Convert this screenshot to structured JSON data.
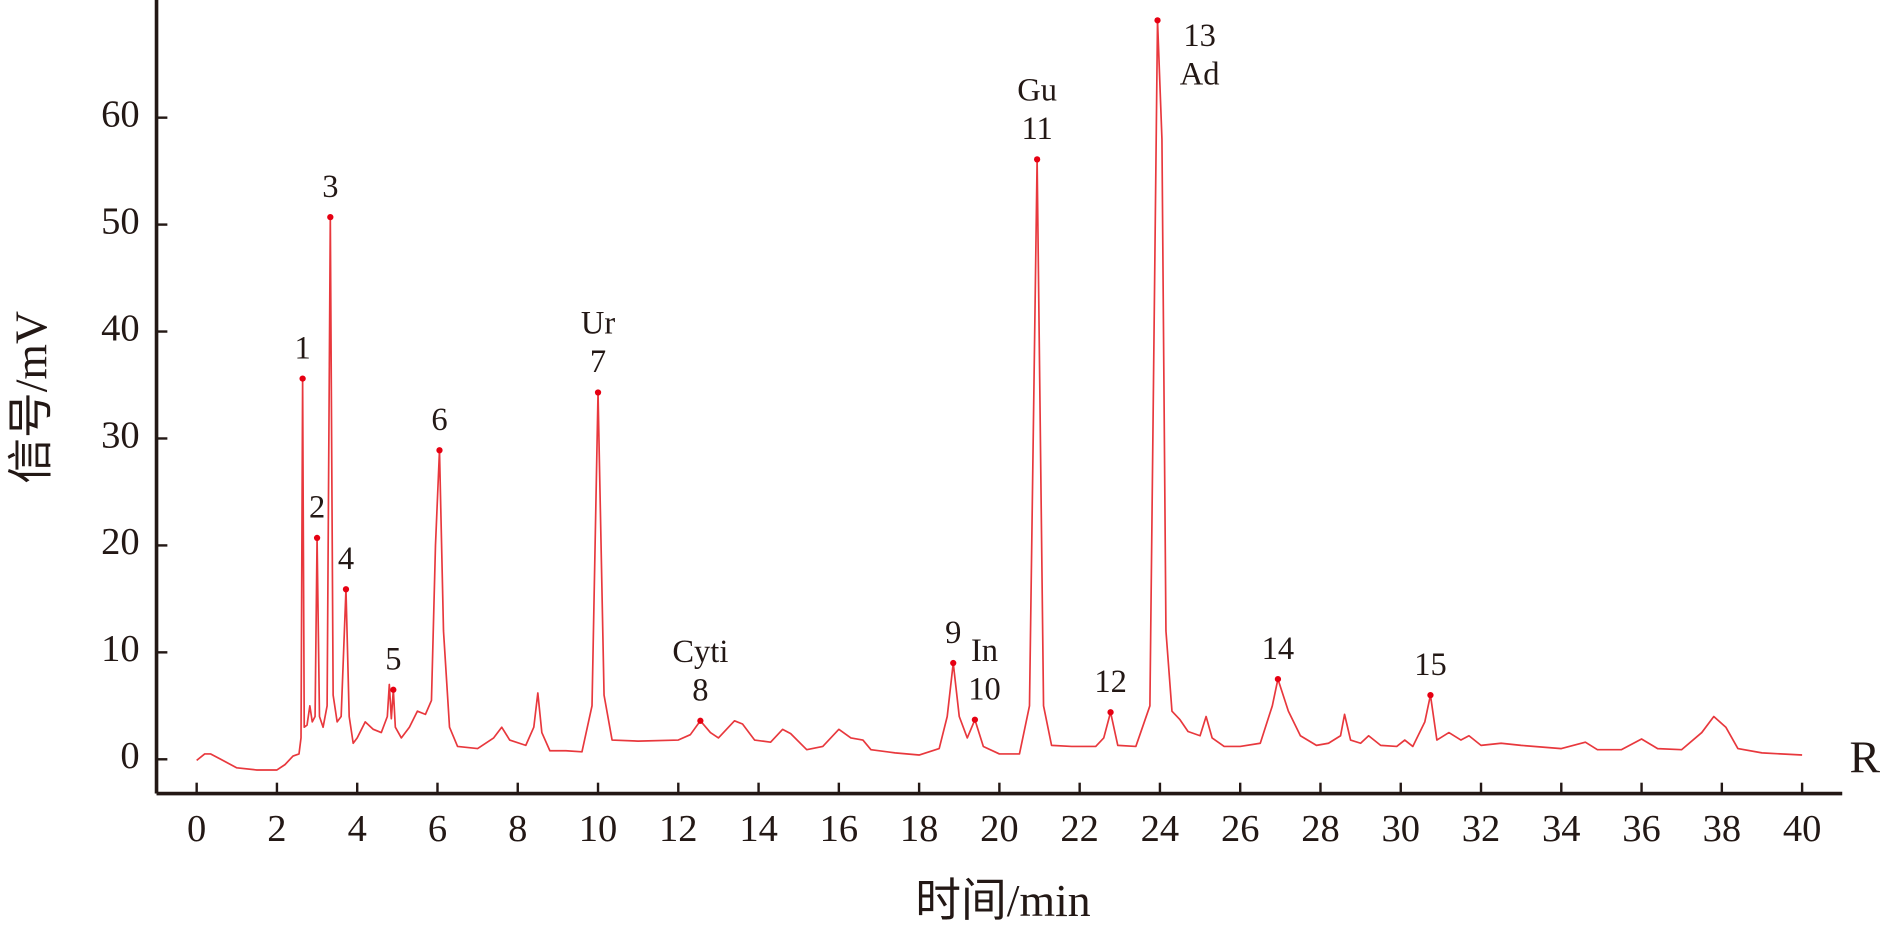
{
  "chart_data": {
    "type": "line",
    "y_label": "信号/mV",
    "x_label": "时间/min",
    "edge_label": "R",
    "color": "#e8383d",
    "marker_color": "#e60012",
    "xlim": [
      -1,
      41
    ],
    "ylim": [
      -3.2,
      71
    ],
    "xticks": [
      0,
      2,
      4,
      6,
      8,
      10,
      12,
      14,
      16,
      18,
      20,
      22,
      24,
      26,
      28,
      30,
      32,
      34,
      36,
      38,
      40
    ],
    "yticks": [
      0,
      10,
      20,
      30,
      40,
      50,
      60
    ],
    "x": [
      0.0,
      0.2,
      0.35,
      0.6,
      1.0,
      1.5,
      2.0,
      2.2,
      2.4,
      2.55,
      2.6,
      2.64,
      2.68,
      2.75,
      2.82,
      2.88,
      2.95,
      3.0,
      3.06,
      3.15,
      3.25,
      3.33,
      3.4,
      3.5,
      3.6,
      3.72,
      3.8,
      3.9,
      4.0,
      4.2,
      4.4,
      4.6,
      4.75,
      4.8,
      4.85,
      4.9,
      4.95,
      5.1,
      5.3,
      5.5,
      5.7,
      5.85,
      5.95,
      6.05,
      6.15,
      6.3,
      6.5,
      7.0,
      7.4,
      7.6,
      7.8,
      8.2,
      8.4,
      8.5,
      8.6,
      8.8,
      9.2,
      9.6,
      9.85,
      10.0,
      10.15,
      10.35,
      11.0,
      12.0,
      12.3,
      12.55,
      12.8,
      13.0,
      13.4,
      13.6,
      13.9,
      14.3,
      14.6,
      14.8,
      15.2,
      15.6,
      16.0,
      16.3,
      16.6,
      16.8,
      17.4,
      18.0,
      18.5,
      18.7,
      18.85,
      19.0,
      19.2,
      19.39,
      19.6,
      20.0,
      20.5,
      20.75,
      20.94,
      21.1,
      21.3,
      21.8,
      22.4,
      22.6,
      22.77,
      22.95,
      23.4,
      23.75,
      23.94,
      24.05,
      24.15,
      24.3,
      24.5,
      24.7,
      25.0,
      25.15,
      25.3,
      25.6,
      26.0,
      26.5,
      26.8,
      26.94,
      27.2,
      27.5,
      27.9,
      28.2,
      28.5,
      28.6,
      28.75,
      29.0,
      29.2,
      29.5,
      29.9,
      30.1,
      30.3,
      30.6,
      30.74,
      30.9,
      31.2,
      31.5,
      31.7,
      32.0,
      32.5,
      33.0,
      34.0,
      34.6,
      34.9,
      35.5,
      36.0,
      36.4,
      37.0,
      37.5,
      37.8,
      38.1,
      38.4,
      39.0,
      40.0
    ],
    "values": [
      -0.1,
      0.5,
      0.5,
      0,
      -0.8,
      -1.0,
      -1.0,
      -0.5,
      0.3,
      0.5,
      2,
      35.6,
      3,
      3.2,
      5,
      3.5,
      4,
      20.7,
      4,
      3,
      5,
      50.7,
      6,
      3.5,
      4,
      15.9,
      4,
      1.5,
      2,
      3.5,
      2.8,
      2.5,
      4,
      7,
      3.8,
      6.5,
      3,
      2,
      3,
      4.5,
      4.2,
      5.5,
      20,
      28.9,
      12,
      3,
      1.2,
      1,
      2,
      3,
      1.8,
      1.3,
      3,
      6.2,
      2.5,
      0.8,
      0.8,
      0.7,
      5,
      34.3,
      6,
      1.8,
      1.7,
      1.8,
      2.3,
      3.6,
      2.5,
      2,
      3.6,
      3.3,
      1.8,
      1.6,
      2.8,
      2.4,
      0.9,
      1.2,
      2.8,
      2,
      1.8,
      0.9,
      0.6,
      0.4,
      1,
      4,
      9.0,
      4,
      2,
      3.7,
      1.2,
      0.5,
      0.5,
      5,
      56.1,
      5,
      1.3,
      1.2,
      1.2,
      2,
      4.4,
      1.3,
      1.2,
      5,
      69.1,
      58,
      12,
      4.5,
      3.7,
      2.6,
      2.2,
      4,
      2,
      1.2,
      1.2,
      1.5,
      5,
      7.5,
      4.5,
      2.2,
      1.3,
      1.5,
      2.2,
      4.2,
      1.8,
      1.5,
      2.2,
      1.3,
      1.2,
      1.8,
      1.2,
      3.5,
      6.0,
      1.8,
      2.5,
      1.8,
      2.2,
      1.3,
      1.5,
      1.3,
      1.0,
      1.6,
      0.9,
      0.9,
      1.9,
      1.0,
      0.9,
      2.5,
      4,
      3,
      1,
      0.6,
      0.4
    ],
    "annotations": [
      {
        "x": 2.64,
        "y": 35.6,
        "label": "1"
      },
      {
        "x": 3.0,
        "y": 20.7,
        "label": "2"
      },
      {
        "x": 3.33,
        "y": 50.7,
        "label": "3"
      },
      {
        "x": 3.72,
        "y": 15.9,
        "label": "4"
      },
      {
        "x": 4.9,
        "y": 6.5,
        "label": "5"
      },
      {
        "x": 6.05,
        "y": 28.9,
        "label": "6"
      },
      {
        "x": 10.0,
        "y": 34.3,
        "label": "7",
        "name": "Ur"
      },
      {
        "x": 12.55,
        "y": 3.6,
        "label": "8",
        "name": "Cyti"
      },
      {
        "x": 18.85,
        "y": 9.0,
        "label": "9"
      },
      {
        "x": 19.39,
        "y": 3.7,
        "label": "10",
        "name": "In"
      },
      {
        "x": 20.94,
        "y": 56.1,
        "label": "11",
        "name": "Gu"
      },
      {
        "x": 22.77,
        "y": 4.4,
        "label": "12"
      },
      {
        "x": 23.94,
        "y": 69.1,
        "label": "13",
        "name": "Ad"
      },
      {
        "x": 26.94,
        "y": 7.5,
        "label": "14"
      },
      {
        "x": 30.74,
        "y": 6.0,
        "label": "15"
      }
    ]
  }
}
